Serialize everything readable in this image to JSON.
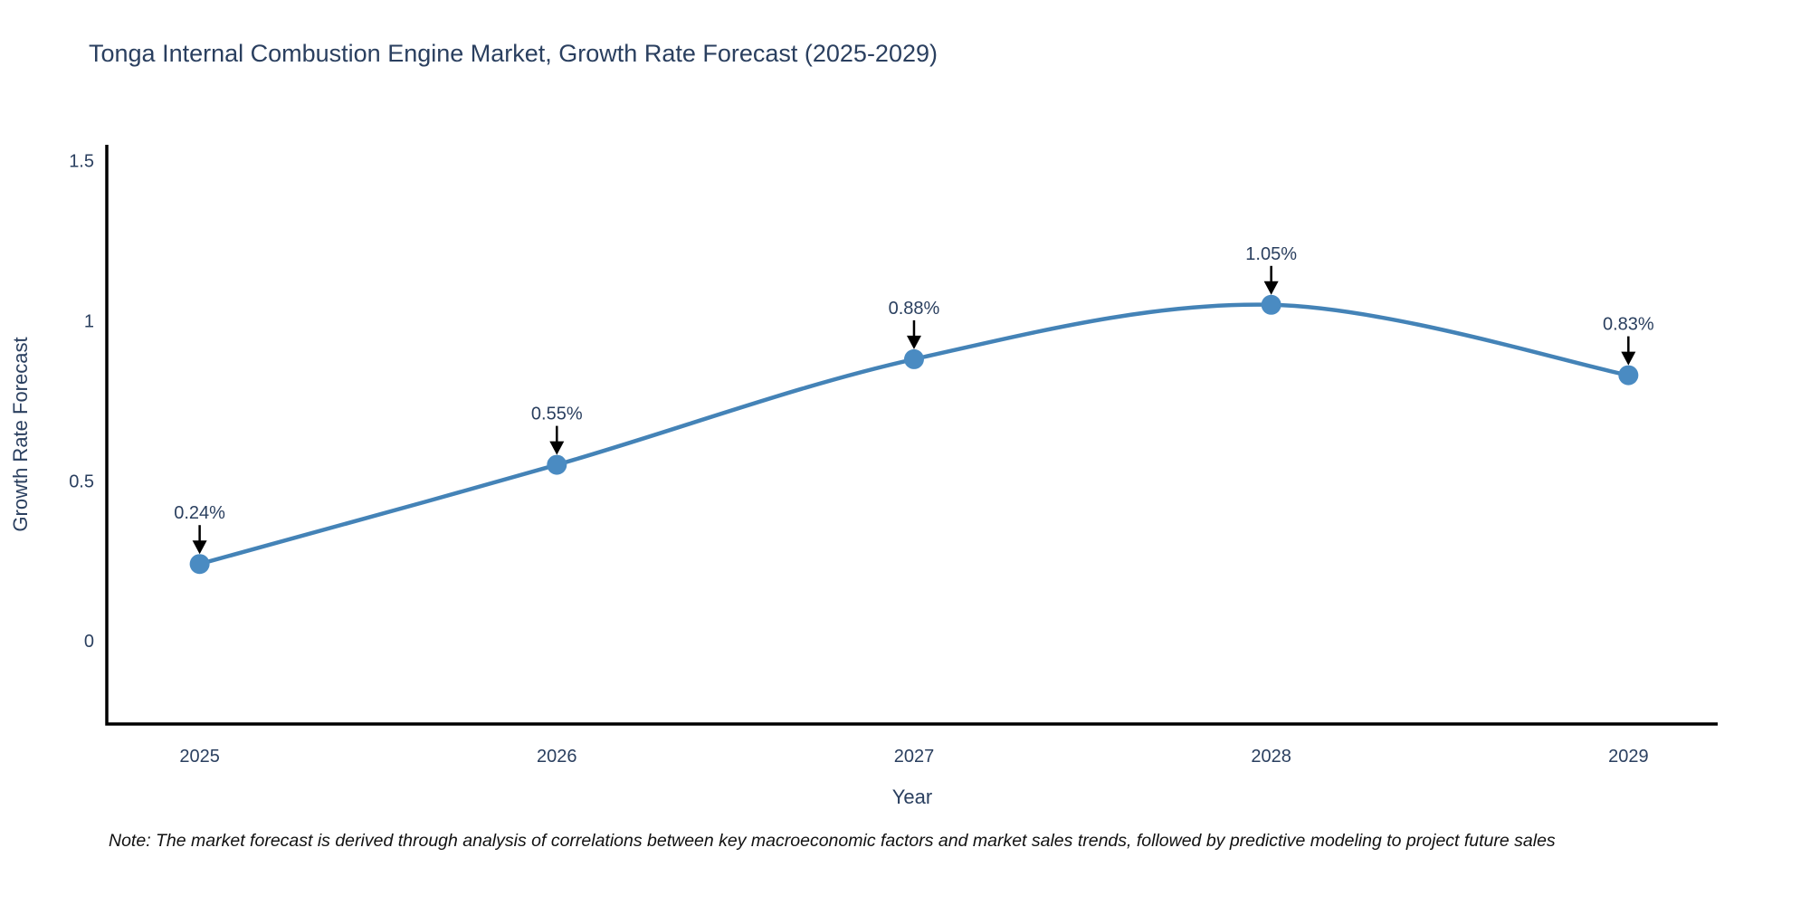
{
  "title": "Tonga Internal Combustion Engine Market, Growth Rate Forecast (2025-2029)",
  "note": "Note: The market forecast is derived through analysis of correlations between key macroeconomic factors and market sales trends, followed by predictive modeling to project future sales",
  "chart_data": {
    "type": "line",
    "line_shape": "spline",
    "x": [
      2025,
      2026,
      2027,
      2028,
      2029
    ],
    "x_tick_labels": [
      "2025",
      "2026",
      "2027",
      "2028",
      "2029"
    ],
    "values": [
      0.24,
      0.55,
      0.88,
      1.05,
      0.83
    ],
    "point_labels": [
      "0.24%",
      "0.55%",
      "0.88%",
      "1.05%",
      "0.83%"
    ],
    "y_ticks": [
      0,
      0.5,
      1,
      1.5
    ],
    "y_tick_labels": [
      "0",
      "0.5",
      "1",
      "1.5"
    ],
    "title": "Tonga Internal Combustion Engine Market, Growth Rate Forecast (2025-2029)",
    "xlabel": "Year",
    "ylabel": "Growth Rate Forecast",
    "xlim": [
      2024.74,
      2029.25
    ],
    "ylim": [
      -0.26,
      1.55
    ],
    "grid": "off",
    "legend": "none",
    "colors": {
      "line": "#4483b7",
      "marker": "#4a8bc2",
      "axis": "#000000",
      "text": "#2a3f5f",
      "arrow": "#000000",
      "background": "#ffffff"
    }
  }
}
